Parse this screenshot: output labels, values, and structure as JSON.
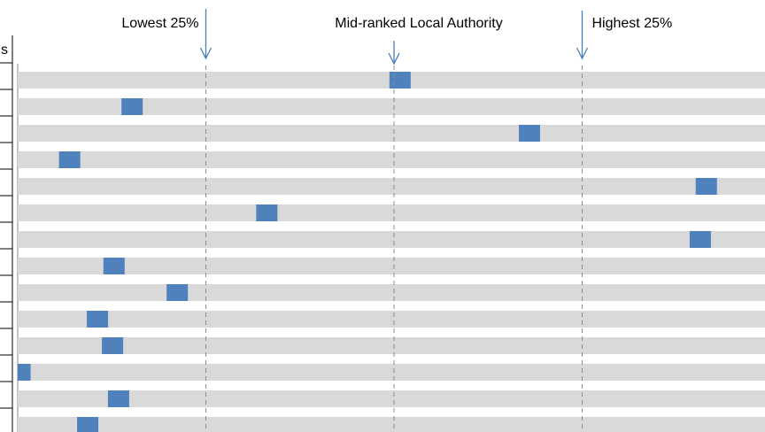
{
  "chart_data": {
    "type": "dot",
    "header_fragment": "s",
    "values": [
      0.508,
      0.152,
      0.68,
      0.069,
      0.915,
      0.331,
      0.907,
      0.128,
      0.212,
      0.106,
      0.126,
      0.003,
      0.134,
      0.093
    ],
    "color": "#4f81bd",
    "bar_color": "#d9d9d9",
    "xlim": [
      0,
      1
    ],
    "xticks": [
      0.25,
      0.5,
      0.75
    ],
    "grid": true,
    "annotations": [
      {
        "text": "Lowest 25%",
        "x": 0.25
      },
      {
        "text": "Mid-ranked Local Authority",
        "x": 0.5
      },
      {
        "text": "Highest 25%",
        "x": 0.75
      }
    ]
  }
}
